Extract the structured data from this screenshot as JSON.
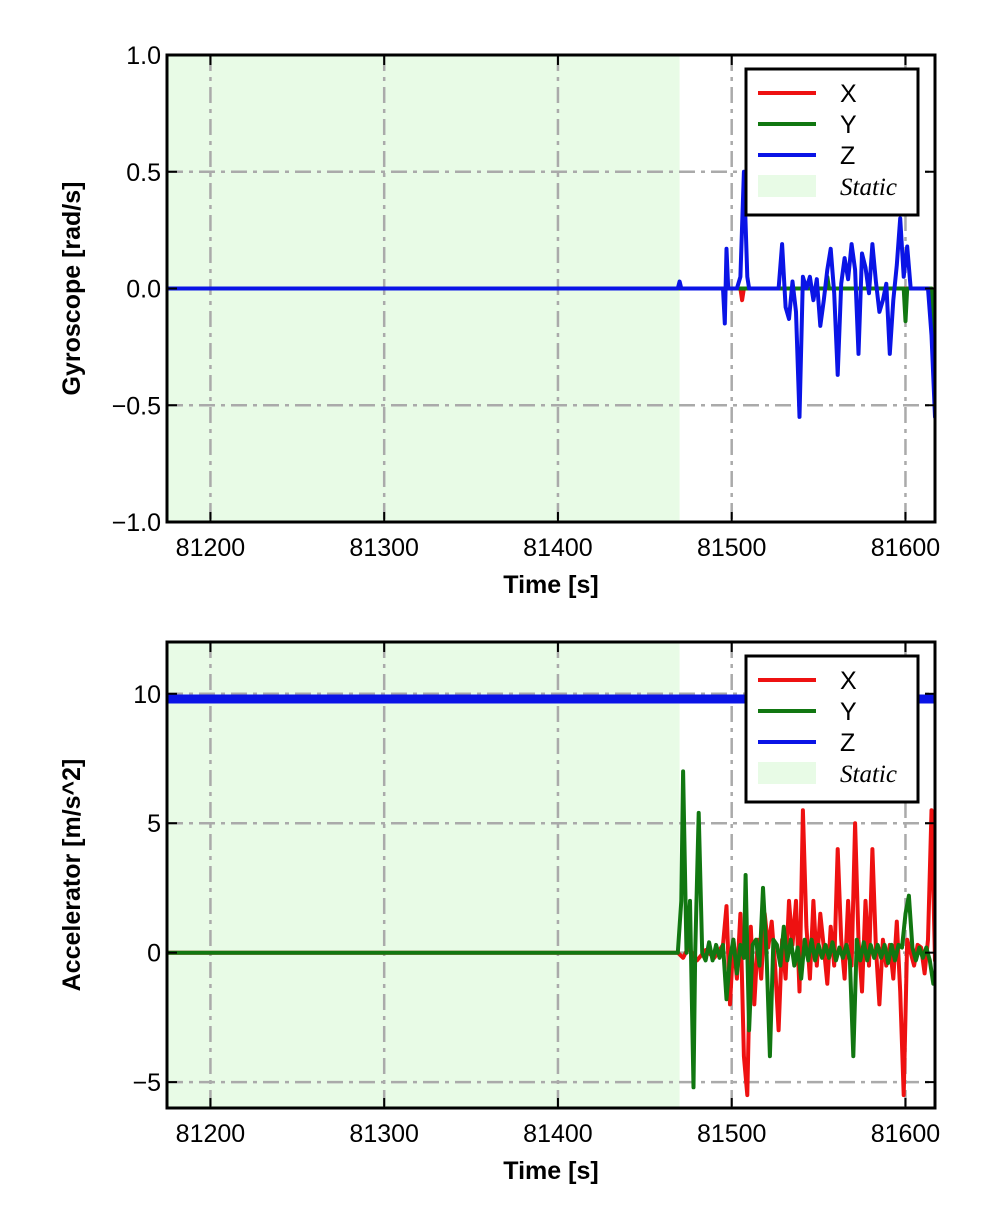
{
  "chart_data": [
    {
      "type": "line",
      "id": "gyro",
      "title": "",
      "xlabel": "Time [s]",
      "ylabel": "Gyroscope [rad/s]",
      "xlim": [
        81175,
        81617
      ],
      "ylim": [
        -1.0,
        1.0
      ],
      "xticks": [
        81200,
        81300,
        81400,
        81500,
        81600
      ],
      "xtick_labels": [
        "81200",
        "81300",
        "81400",
        "81500",
        "81600"
      ],
      "yticks": [
        -1.0,
        -0.5,
        0.0,
        0.5,
        1.0
      ],
      "ytick_labels": [
        "−1.0",
        "−0.5",
        "0.0",
        "0.5",
        "1.0"
      ],
      "grid": true,
      "legend_position": "top-right",
      "static_region": {
        "label": "Static",
        "x_start": 81175,
        "x_end": 81470,
        "color": "#e8fbe6"
      },
      "series": [
        {
          "name": "X",
          "color": "#ee1111",
          "points": [
            [
              81175,
              0
            ],
            [
              81505,
              0
            ],
            [
              81506,
              -0.05
            ],
            [
              81507,
              0
            ],
            [
              81600,
              0
            ],
            [
              81615,
              0
            ],
            [
              81617,
              -0.3
            ]
          ]
        },
        {
          "name": "Y",
          "color": "#117711",
          "points": [
            [
              81175,
              0
            ],
            [
              81554,
              0
            ],
            [
              81555,
              0.05
            ],
            [
              81556,
              0
            ],
            [
              81599,
              0
            ],
            [
              81600,
              -0.14
            ],
            [
              81601,
              0
            ],
            [
              81615,
              0
            ],
            [
              81617,
              -0.3
            ]
          ]
        },
        {
          "name": "Z",
          "color": "#0a14e6",
          "points": [
            [
              81175,
              0
            ],
            [
              81469,
              0
            ],
            [
              81470,
              0.03
            ],
            [
              81471,
              0
            ],
            [
              81495,
              0
            ],
            [
              81496,
              -0.15
            ],
            [
              81497,
              0.17
            ],
            [
              81498,
              0
            ],
            [
              81503,
              0
            ],
            [
              81505,
              0.05
            ],
            [
              81507,
              0.5
            ],
            [
              81509,
              0.05
            ],
            [
              81510,
              0
            ],
            [
              81527,
              0
            ],
            [
              81529,
              0.19
            ],
            [
              81531,
              -0.08
            ],
            [
              81533,
              -0.13
            ],
            [
              81535,
              0.03
            ],
            [
              81537,
              -0.1
            ],
            [
              81539,
              -0.55
            ],
            [
              81541,
              0.05
            ],
            [
              81543,
              0
            ],
            [
              81545,
              0.05
            ],
            [
              81547,
              -0.05
            ],
            [
              81549,
              0.04
            ],
            [
              81551,
              -0.16
            ],
            [
              81553,
              -0.05
            ],
            [
              81555,
              0.08
            ],
            [
              81557,
              0.17
            ],
            [
              81559,
              -0.02
            ],
            [
              81561,
              -0.37
            ],
            [
              81563,
              0.02
            ],
            [
              81565,
              0.13
            ],
            [
              81567,
              0.04
            ],
            [
              81569,
              0.19
            ],
            [
              81571,
              0.08
            ],
            [
              81573,
              -0.28
            ],
            [
              81575,
              0.15
            ],
            [
              81577,
              0.09
            ],
            [
              81579,
              -0.02
            ],
            [
              81581,
              0.19
            ],
            [
              81583,
              0.03
            ],
            [
              81585,
              -0.1
            ],
            [
              81587,
              -0.05
            ],
            [
              81589,
              0.02
            ],
            [
              81591,
              -0.28
            ],
            [
              81593,
              -0.05
            ],
            [
              81595,
              0.1
            ],
            [
              81597,
              0.3
            ],
            [
              81599,
              0.05
            ],
            [
              81601,
              0.18
            ],
            [
              81603,
              0
            ],
            [
              81613,
              0
            ],
            [
              81615,
              -0.2
            ],
            [
              81617,
              -0.55
            ]
          ]
        }
      ]
    },
    {
      "type": "line",
      "id": "accel",
      "title": "",
      "xlabel": "Time [s]",
      "ylabel": "Accelerator [m/s^2]",
      "xlim": [
        81175,
        81617
      ],
      "ylim": [
        -6,
        12
      ],
      "xticks": [
        81200,
        81300,
        81400,
        81500,
        81600
      ],
      "xtick_labels": [
        "81200",
        "81300",
        "81400",
        "81500",
        "81600"
      ],
      "yticks": [
        -5,
        0,
        5,
        10
      ],
      "ytick_labels": [
        "−5",
        "0",
        "5",
        "10"
      ],
      "grid": true,
      "legend_position": "top-right",
      "static_region": {
        "label": "Static",
        "x_start": 81175,
        "x_end": 81470,
        "color": "#e8fbe6"
      },
      "series": [
        {
          "name": "X",
          "color": "#ee1111",
          "points": [
            [
              81175,
              0
            ],
            [
              81469,
              0
            ],
            [
              81472,
              -0.2
            ],
            [
              81475,
              0.2
            ],
            [
              81480,
              -0.3
            ],
            [
              81485,
              0.1
            ],
            [
              81490,
              -0.2
            ],
            [
              81495,
              0.3
            ],
            [
              81497,
              1.8
            ],
            [
              81499,
              -2
            ],
            [
              81501,
              0.5
            ],
            [
              81503,
              -1
            ],
            [
              81505,
              1.5
            ],
            [
              81507,
              -4
            ],
            [
              81509,
              -5.5
            ],
            [
              81511,
              1
            ],
            [
              81513,
              -2
            ],
            [
              81515,
              0.5
            ],
            [
              81517,
              -1
            ],
            [
              81519,
              1.5
            ],
            [
              81521,
              0.2
            ],
            [
              81523,
              1.2
            ],
            [
              81525,
              -0.5
            ],
            [
              81527,
              -3
            ],
            [
              81529,
              0.5
            ],
            [
              81531,
              -1
            ],
            [
              81533,
              2
            ],
            [
              81535,
              0.3
            ],
            [
              81537,
              2
            ],
            [
              81539,
              -1.5
            ],
            [
              81541,
              5.5
            ],
            [
              81543,
              1
            ],
            [
              81545,
              -1
            ],
            [
              81547,
              2
            ],
            [
              81549,
              -0.5
            ],
            [
              81551,
              1.5
            ],
            [
              81553,
              0.2
            ],
            [
              81555,
              -1.2
            ],
            [
              81557,
              1
            ],
            [
              81559,
              -0.5
            ],
            [
              81561,
              4
            ],
            [
              81563,
              0.5
            ],
            [
              81565,
              -1
            ],
            [
              81567,
              2
            ],
            [
              81569,
              -0.5
            ],
            [
              81571,
              5
            ],
            [
              81573,
              0.5
            ],
            [
              81575,
              -1.5
            ],
            [
              81577,
              2
            ],
            [
              81579,
              -0.5
            ],
            [
              81581,
              4
            ],
            [
              81583,
              0.2
            ],
            [
              81585,
              -2
            ],
            [
              81587,
              0.5
            ],
            [
              81589,
              -0.5
            ],
            [
              81591,
              0.3
            ],
            [
              81593,
              -1
            ],
            [
              81595,
              1.2
            ],
            [
              81597,
              -1.5
            ],
            [
              81599,
              -5.5
            ],
            [
              81601,
              0.5
            ],
            [
              81603,
              0
            ],
            [
              81605,
              -0.5
            ],
            [
              81607,
              0.3
            ],
            [
              81609,
              0.2
            ],
            [
              81611,
              -0.8
            ],
            [
              81613,
              0.5
            ],
            [
              81615,
              5.5
            ],
            [
              81617,
              -0.3
            ]
          ]
        },
        {
          "name": "Y",
          "color": "#117711",
          "points": [
            [
              81175,
              0
            ],
            [
              81469,
              0
            ],
            [
              81471,
              2
            ],
            [
              81472,
              7
            ],
            [
              81474,
              0
            ],
            [
              81476,
              2
            ],
            [
              81478,
              -5.2
            ],
            [
              81479,
              0
            ],
            [
              81481,
              5.4
            ],
            [
              81483,
              0
            ],
            [
              81485,
              -0.3
            ],
            [
              81487,
              0.4
            ],
            [
              81489,
              -0.3
            ],
            [
              81491,
              0.3
            ],
            [
              81493,
              -0.2
            ],
            [
              81495,
              0.3
            ],
            [
              81497,
              -1.8
            ],
            [
              81499,
              -0.2
            ],
            [
              81501,
              0.5
            ],
            [
              81503,
              -0.8
            ],
            [
              81505,
              0.3
            ],
            [
              81507,
              -0.2
            ],
            [
              81508,
              3
            ],
            [
              81510,
              -3
            ],
            [
              81512,
              0.3
            ],
            [
              81514,
              0.5
            ],
            [
              81516,
              -0.5
            ],
            [
              81518,
              2.5
            ],
            [
              81520,
              0
            ],
            [
              81522,
              -4
            ],
            [
              81524,
              0.5
            ],
            [
              81526,
              0.3
            ],
            [
              81528,
              -0.5
            ],
            [
              81530,
              1
            ],
            [
              81532,
              -0.3
            ],
            [
              81534,
              0.5
            ],
            [
              81536,
              -0.5
            ],
            [
              81538,
              0.2
            ],
            [
              81540,
              -1
            ],
            [
              81542,
              0.5
            ],
            [
              81544,
              -0.3
            ],
            [
              81546,
              0.5
            ],
            [
              81548,
              -0.3
            ],
            [
              81550,
              0.3
            ],
            [
              81552,
              -0.2
            ],
            [
              81554,
              0.3
            ],
            [
              81556,
              -0.2
            ],
            [
              81558,
              0.4
            ],
            [
              81560,
              -0.3
            ],
            [
              81562,
              0.2
            ],
            [
              81564,
              -0.2
            ],
            [
              81566,
              0.3
            ],
            [
              81568,
              -0.3
            ],
            [
              81570,
              -4
            ],
            [
              81572,
              0.5
            ],
            [
              81574,
              -0.3
            ],
            [
              81576,
              0.4
            ],
            [
              81578,
              -0.3
            ],
            [
              81580,
              0.3
            ],
            [
              81582,
              -0.2
            ],
            [
              81584,
              0.3
            ],
            [
              81586,
              -0.2
            ],
            [
              81588,
              0.3
            ],
            [
              81590,
              -0.4
            ],
            [
              81592,
              0.3
            ],
            [
              81594,
              -0.3
            ],
            [
              81596,
              0.3
            ],
            [
              81598,
              0.2
            ],
            [
              81600,
              1.5
            ],
            [
              81602,
              2.2
            ],
            [
              81604,
              0.2
            ],
            [
              81606,
              -0.3
            ],
            [
              81608,
              0.2
            ],
            [
              81610,
              -0.2
            ],
            [
              81612,
              0.2
            ],
            [
              81614,
              -0.3
            ],
            [
              81616,
              -1.2
            ],
            [
              81617,
              -1.2
            ]
          ]
        },
        {
          "name": "Z",
          "color": "#0a14e6",
          "points": [
            [
              81175,
              9.8
            ],
            [
              81617,
              9.8
            ]
          ]
        }
      ]
    }
  ]
}
